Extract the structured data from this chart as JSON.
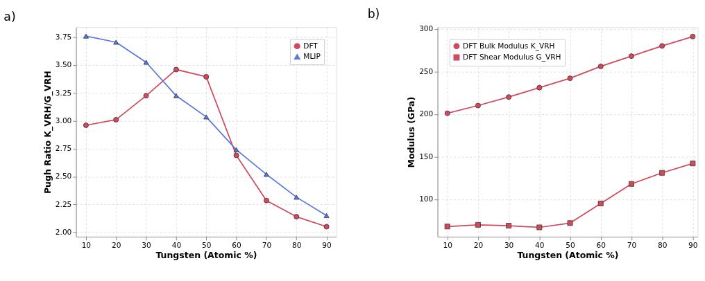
{
  "chart_data": [
    {
      "type": "line",
      "title": "a)",
      "xlabel": "Tungsten (Atomic %)",
      "ylabel": "Pugh Ratio K_VRH/G_VRH",
      "x": [
        10,
        20,
        30,
        40,
        50,
        60,
        70,
        80,
        90
      ],
      "series": [
        {
          "name": "DFT",
          "color": "#d1495b",
          "marker": "circle",
          "values": [
            2.96,
            3.01,
            3.225,
            3.46,
            3.395,
            2.69,
            2.285,
            2.14,
            2.05
          ]
        },
        {
          "name": "MLIP",
          "color": "#5a78e0",
          "marker": "triangle",
          "values": [
            3.76,
            3.705,
            3.525,
            3.225,
            3.035,
            2.74,
            2.52,
            2.315,
            2.15
          ]
        }
      ],
      "xlim": [
        6.7,
        93.2
      ],
      "xticks": [
        10,
        20,
        30,
        40,
        50,
        60,
        70,
        80,
        90
      ],
      "ylim": [
        1.96,
        3.84
      ],
      "yticks": [
        {
          "value": 2,
          "label": "2.00"
        },
        {
          "value": 2.25,
          "label": "2.25"
        },
        {
          "value": 2.5,
          "label": "2.50"
        },
        {
          "value": 2.75,
          "label": "2.75"
        },
        {
          "value": 3,
          "label": "3.00"
        },
        {
          "value": 3.25,
          "label": "3.25"
        },
        {
          "value": 3.5,
          "label": "3.50"
        },
        {
          "value": 3.75,
          "label": "3.75"
        }
      ],
      "grid": true,
      "legend": "top right",
      "line_style": "solid"
    },
    {
      "type": "line",
      "title": "b)",
      "xlabel": "Tungsten (Atomic %)",
      "ylabel": "Modulus (GPa)",
      "x": [
        10,
        20,
        30,
        40,
        50,
        60,
        70,
        80,
        90
      ],
      "series": [
        {
          "name": "DFT Bulk Modulus K_VRH",
          "color": "#d1495b",
          "marker": "circle",
          "values": [
            201,
            210,
            220,
            231,
            242,
            256,
            268,
            280,
            291
          ]
        },
        {
          "name": "DFT Shear Modulus G_VRH",
          "color": "#d1495b",
          "marker": "square",
          "values": [
            68,
            70,
            69,
            67,
            72,
            95,
            118,
            131,
            142
          ]
        }
      ],
      "xlim": [
        6.8,
        91.6
      ],
      "xticks": [
        10,
        20,
        30,
        40,
        50,
        60,
        70,
        80,
        90
      ],
      "ylim": [
        56,
        302
      ],
      "yticks": [
        100,
        150,
        200,
        250,
        300
      ],
      "grid": true,
      "legend": "top left",
      "line_style": "solid"
    }
  ]
}
